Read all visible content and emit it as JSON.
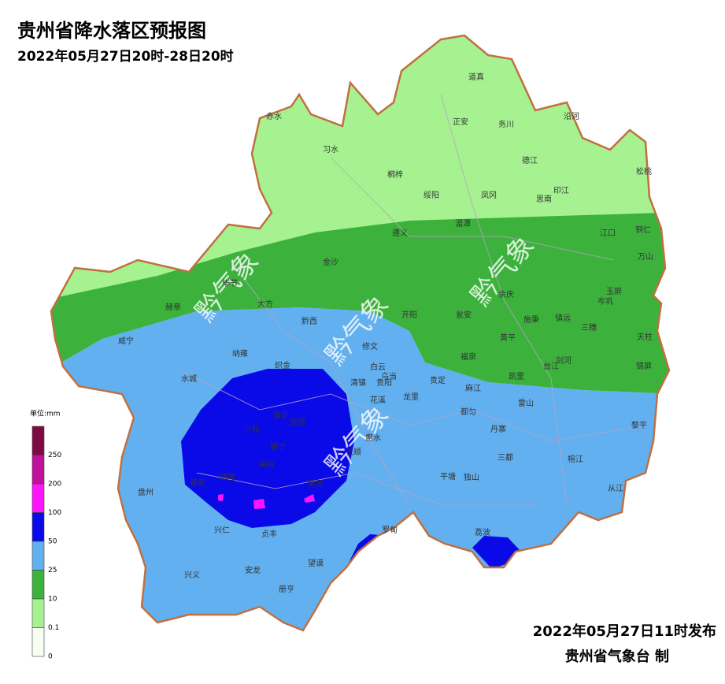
{
  "header": {
    "title": "贵州省降水落区预报图",
    "subtitle": "2022年05月27日20时-28日20时"
  },
  "legend": {
    "unit": "单位:mm",
    "ticks": [
      250,
      200,
      100,
      50,
      25,
      10,
      0.1,
      0
    ],
    "colors": [
      "#7d0a45",
      "#c0109c",
      "#ff14ff",
      "#0a0ae8",
      "#62b0f0",
      "#3cb23c",
      "#a6f291",
      "#f7fff2"
    ]
  },
  "watermark": "黔气象",
  "counties": [
    "赤水",
    "习水",
    "道真",
    "正安",
    "务川",
    "沿河",
    "桐梓",
    "绥阳",
    "凤冈",
    "德江",
    "印江",
    "思南",
    "松桃",
    "遵义",
    "湄潭",
    "江口",
    "铜仁",
    "万山",
    "金沙",
    "毕节",
    "大方",
    "赫章",
    "余庆",
    "玉屏",
    "岑巩",
    "黔西",
    "开阳",
    "瓮安",
    "施秉",
    "镇远",
    "三穗",
    "天柱",
    "威宁",
    "纳雍",
    "修文",
    "黄平",
    "剑河",
    "锦屏",
    "织金",
    "白云",
    "乌当",
    "福泉",
    "台江",
    "凯里",
    "水城",
    "清镇",
    "贵阳",
    "贵定",
    "麻江",
    "龙里",
    "花溪",
    "雷山",
    "黎平",
    "普定",
    "安顺",
    "六枝",
    "都匀",
    "丹寨",
    "镇宁",
    "长顺",
    "惠水",
    "三都",
    "榕江",
    "关岭",
    "盘州",
    "平塘",
    "独山",
    "从江",
    "晴隆",
    "普安",
    "紫云",
    "兴仁",
    "贞丰",
    "罗甸",
    "荔波",
    "望谟",
    "兴义",
    "安龙",
    "册亨"
  ],
  "footer": {
    "issued": "2022年05月27日11时发布",
    "issuer": "贵州省气象台 制"
  }
}
